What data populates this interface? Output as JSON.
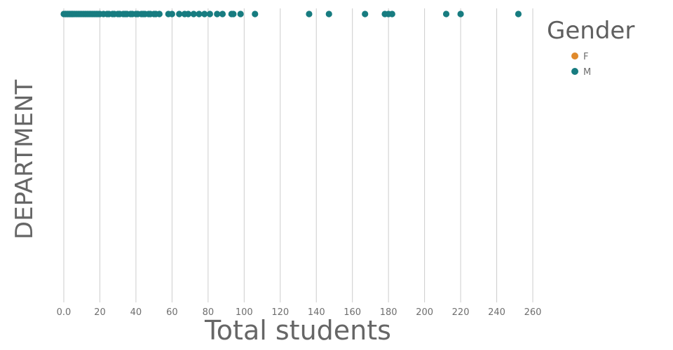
{
  "chart_data": {
    "type": "scatter",
    "xlabel": "Total students",
    "ylabel": "DEPARTMENT",
    "xlim": [
      0,
      260
    ],
    "x_ticks": [
      "0.0",
      "20",
      "40",
      "60",
      "80",
      "100",
      "120",
      "140",
      "160",
      "180",
      "200",
      "220",
      "240",
      "260"
    ],
    "grid": "vertical",
    "legend": {
      "title": "Gender",
      "placement": "top-right",
      "entries": [
        {
          "label": "F",
          "color": "#e08a2c"
        },
        {
          "label": "M",
          "color": "#177c80"
        }
      ]
    },
    "series": [
      {
        "name": "M",
        "color": "#177c80",
        "x": [
          0,
          1,
          1,
          2,
          2,
          3,
          3,
          4,
          4,
          5,
          5,
          6,
          7,
          8,
          9,
          10,
          11,
          12,
          13,
          14,
          15,
          16,
          17,
          18,
          19,
          20,
          22,
          24,
          25,
          27,
          28,
          30,
          31,
          33,
          34,
          35,
          37,
          38,
          40,
          41,
          43,
          44,
          45,
          47,
          48,
          50,
          51,
          53,
          58,
          60,
          64,
          67,
          69,
          72,
          75,
          78,
          81,
          85,
          88,
          93,
          94,
          98,
          106,
          136,
          147,
          167,
          178,
          180,
          182,
          212,
          220,
          252
        ]
      },
      {
        "name": "F",
        "color": "#e08a2c",
        "x": []
      }
    ]
  }
}
